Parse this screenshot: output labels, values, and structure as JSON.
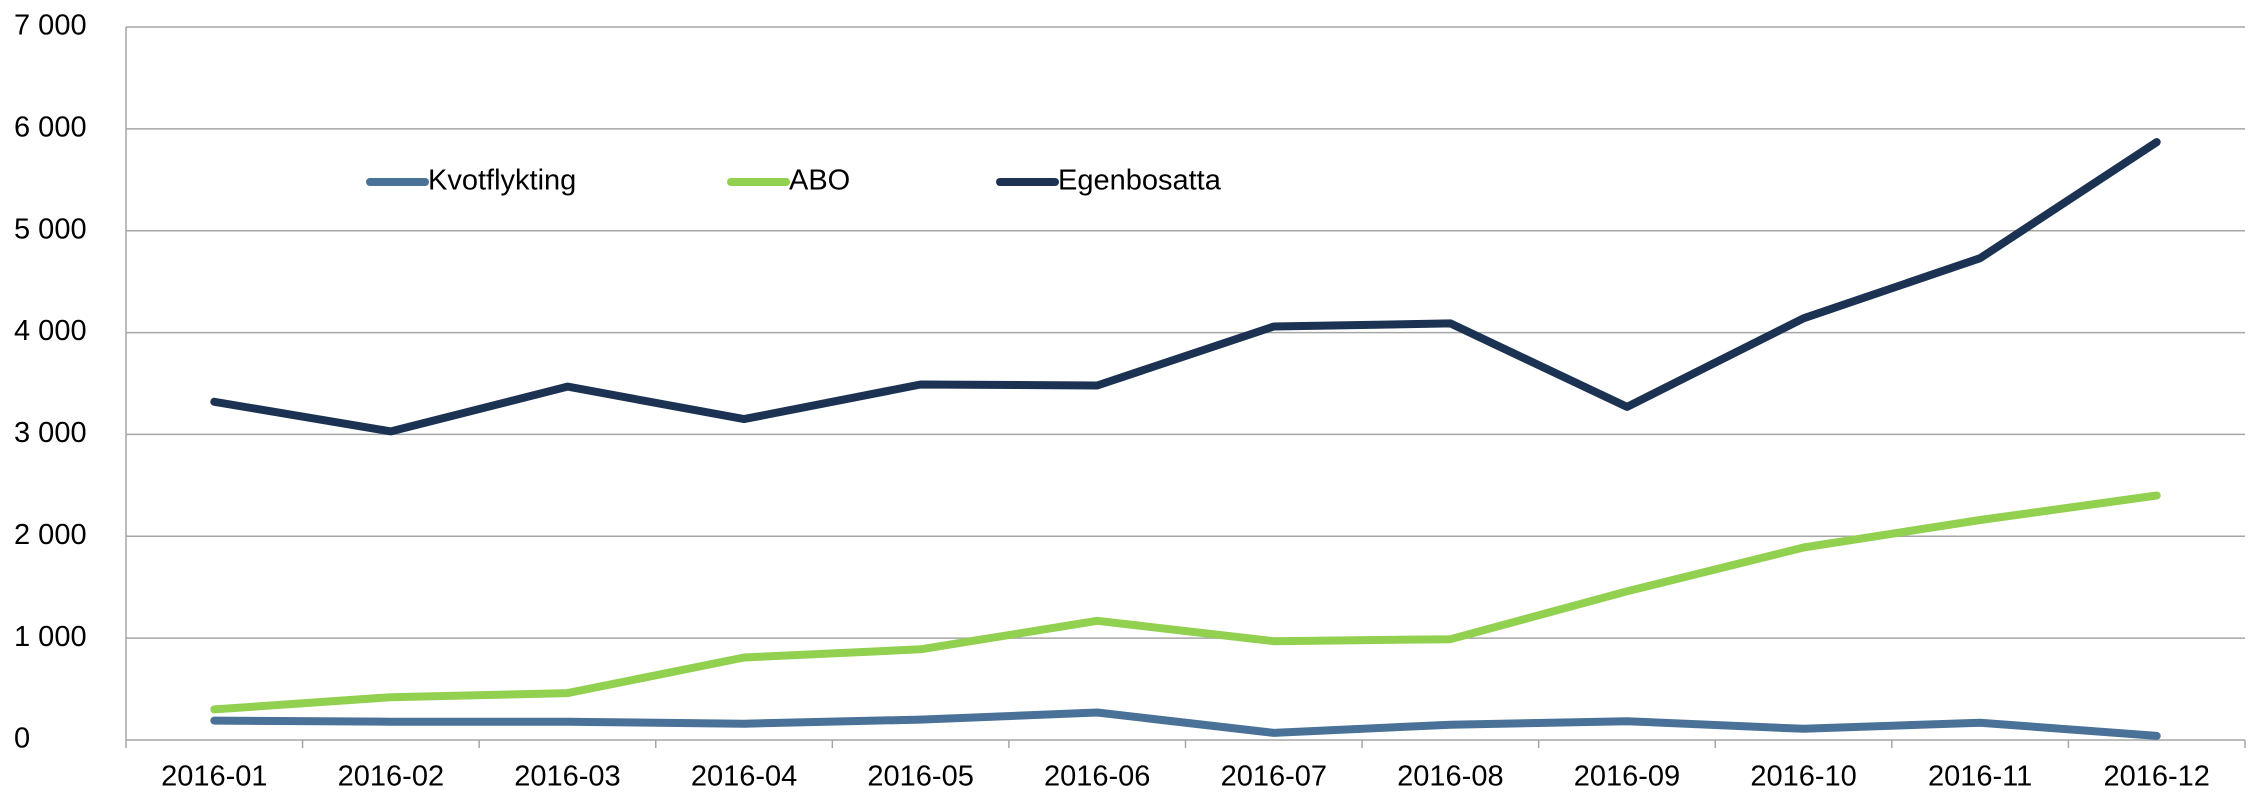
{
  "chart_data": {
    "type": "line",
    "categories": [
      "2016-01",
      "2016-02",
      "2016-03",
      "2016-04",
      "2016-05",
      "2016-06",
      "2016-07",
      "2016-08",
      "2016-09",
      "2016-10",
      "2016-11",
      "2016-12"
    ],
    "series": [
      {
        "name": "Kvotflykting",
        "color": "#4a7197",
        "values": [
          190,
          180,
          180,
          160,
          200,
          270,
          70,
          150,
          185,
          110,
          170,
          40
        ]
      },
      {
        "name": "ABO",
        "color": "#92d050",
        "values": [
          300,
          420,
          460,
          810,
          890,
          1170,
          970,
          990,
          1460,
          1890,
          2160,
          2400
        ]
      },
      {
        "name": "Egenbosatta",
        "color": "#1b3252",
        "values": [
          3320,
          3030,
          3470,
          3150,
          3490,
          3480,
          4060,
          4090,
          3270,
          4140,
          4730,
          5870
        ]
      }
    ],
    "ylim": [
      0,
      7000
    ],
    "yticks": [
      0,
      {
        "value": 1000,
        "label": "1 000"
      },
      {
        "value": 2000,
        "label": "2 000"
      },
      {
        "value": 3000,
        "label": "3 000"
      },
      {
        "value": 4000,
        "label": "4 000"
      },
      {
        "value": 5000,
        "label": "5 000"
      },
      {
        "value": 6000,
        "label": "6 000"
      },
      {
        "value": 7000,
        "label": "7 000"
      }
    ],
    "grid": true,
    "legend": "top"
  }
}
